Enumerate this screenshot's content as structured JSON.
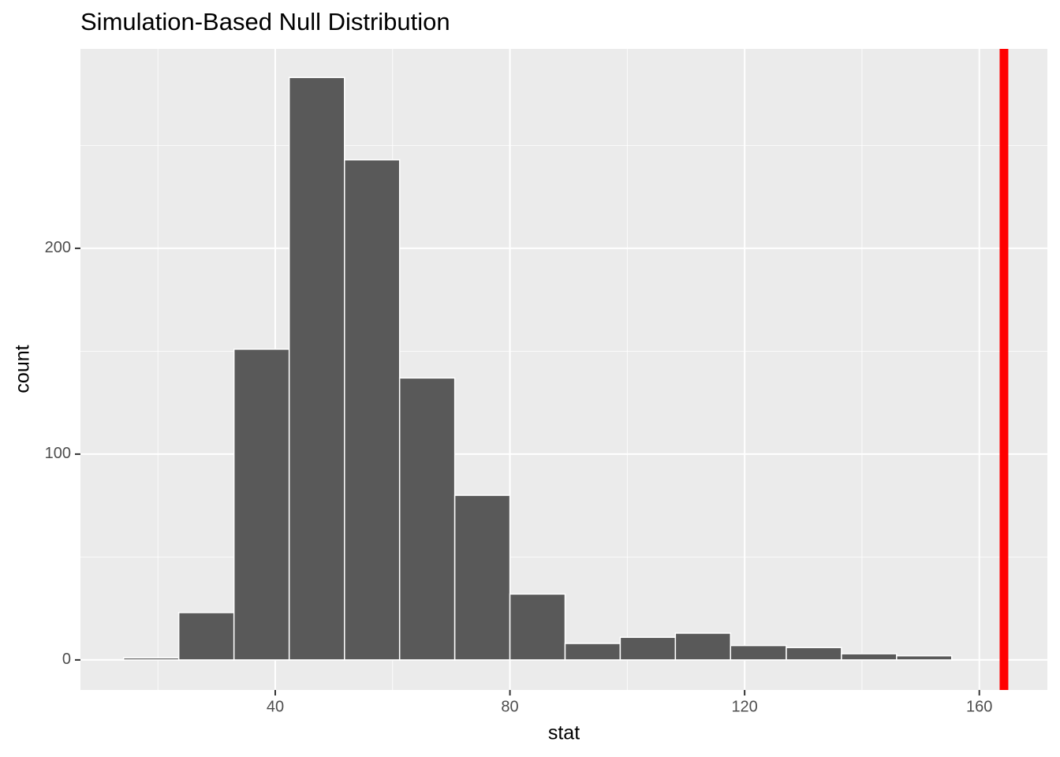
{
  "chart_data": {
    "type": "histogram",
    "title": "Simulation-Based Null Distribution",
    "x_label": "stat",
    "y_label": "count",
    "bins": [
      14.15,
      23.56,
      32.97,
      42.38,
      51.8,
      61.2,
      70.6,
      80.0,
      89.4,
      98.8,
      108.2,
      117.6,
      127.1,
      136.5,
      145.9,
      155.3
    ],
    "counts": [
      1,
      23,
      151,
      283,
      243,
      137,
      80,
      32,
      8,
      11,
      13,
      7,
      6,
      3,
      2
    ],
    "color": "#595959",
    "edge_color": "#ffffff",
    "xlim": [
      6.8,
      171.6
    ],
    "ylim": [
      -14.6,
      296.9
    ],
    "xticks": [
      40,
      80,
      120,
      160
    ],
    "yticks": [
      0,
      100,
      200
    ],
    "x_minor_ticks": [
      20,
      60,
      100,
      140
    ],
    "y_minor_ticks": [
      50,
      150,
      250
    ],
    "grid": true,
    "panel_color": "#ebebeb",
    "vline": {
      "x": 164.2,
      "color": "#ff0000"
    }
  }
}
